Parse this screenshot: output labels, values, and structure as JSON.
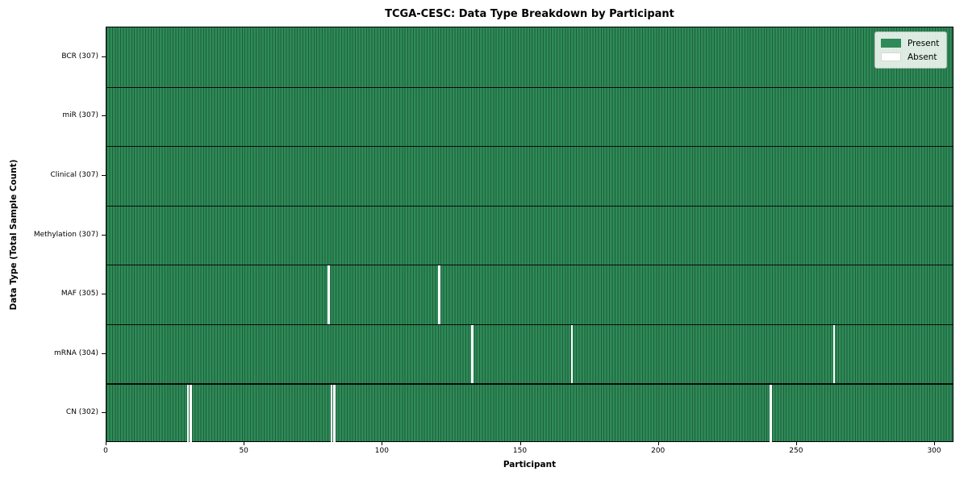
{
  "title": "TCGA-CESC: Data Type Breakdown by Participant",
  "chart_data": {
    "type": "heatmap",
    "title": "TCGA-CESC: Data Type Breakdown by Participant",
    "xlabel": "Participant",
    "ylabel": "Data Type (Total Sample Count)",
    "n_participants": 307,
    "x_ticks": [
      0,
      50,
      100,
      150,
      200,
      250,
      300
    ],
    "xlim": [
      0,
      307
    ],
    "grid": "per-participant vertical cell edges",
    "rows": [
      {
        "label": "BCR (307)",
        "data_type": "BCR",
        "present_count": 307,
        "absent_participants": []
      },
      {
        "label": "miR (307)",
        "data_type": "miR",
        "present_count": 307,
        "absent_participants": []
      },
      {
        "label": "Clinical (307)",
        "data_type": "Clinical",
        "present_count": 307,
        "absent_participants": []
      },
      {
        "label": "Methylation (307)",
        "data_type": "Methylation",
        "present_count": 307,
        "absent_participants": []
      },
      {
        "label": "MAF (305)",
        "data_type": "MAF",
        "present_count": 305,
        "absent_participants": [
          80,
          120
        ]
      },
      {
        "label": "mRNA (304)",
        "data_type": "mRNA",
        "present_count": 304,
        "absent_participants": [
          132,
          168,
          263
        ]
      },
      {
        "label": "CN (302)",
        "data_type": "CN",
        "present_count": 302,
        "absent_participants": [
          29,
          30,
          81,
          82,
          240
        ]
      }
    ],
    "legend": {
      "position": "upper right",
      "entries": [
        {
          "label": "Present",
          "color": "#2e8b57"
        },
        {
          "label": "Absent",
          "color": "#ffffff"
        }
      ]
    },
    "colors": {
      "present": "#2e8b57",
      "cell_edge": "#1f5e3d",
      "absent": "#ffffff",
      "row_divider": "#0a0a0a",
      "spine": "#000000"
    }
  }
}
